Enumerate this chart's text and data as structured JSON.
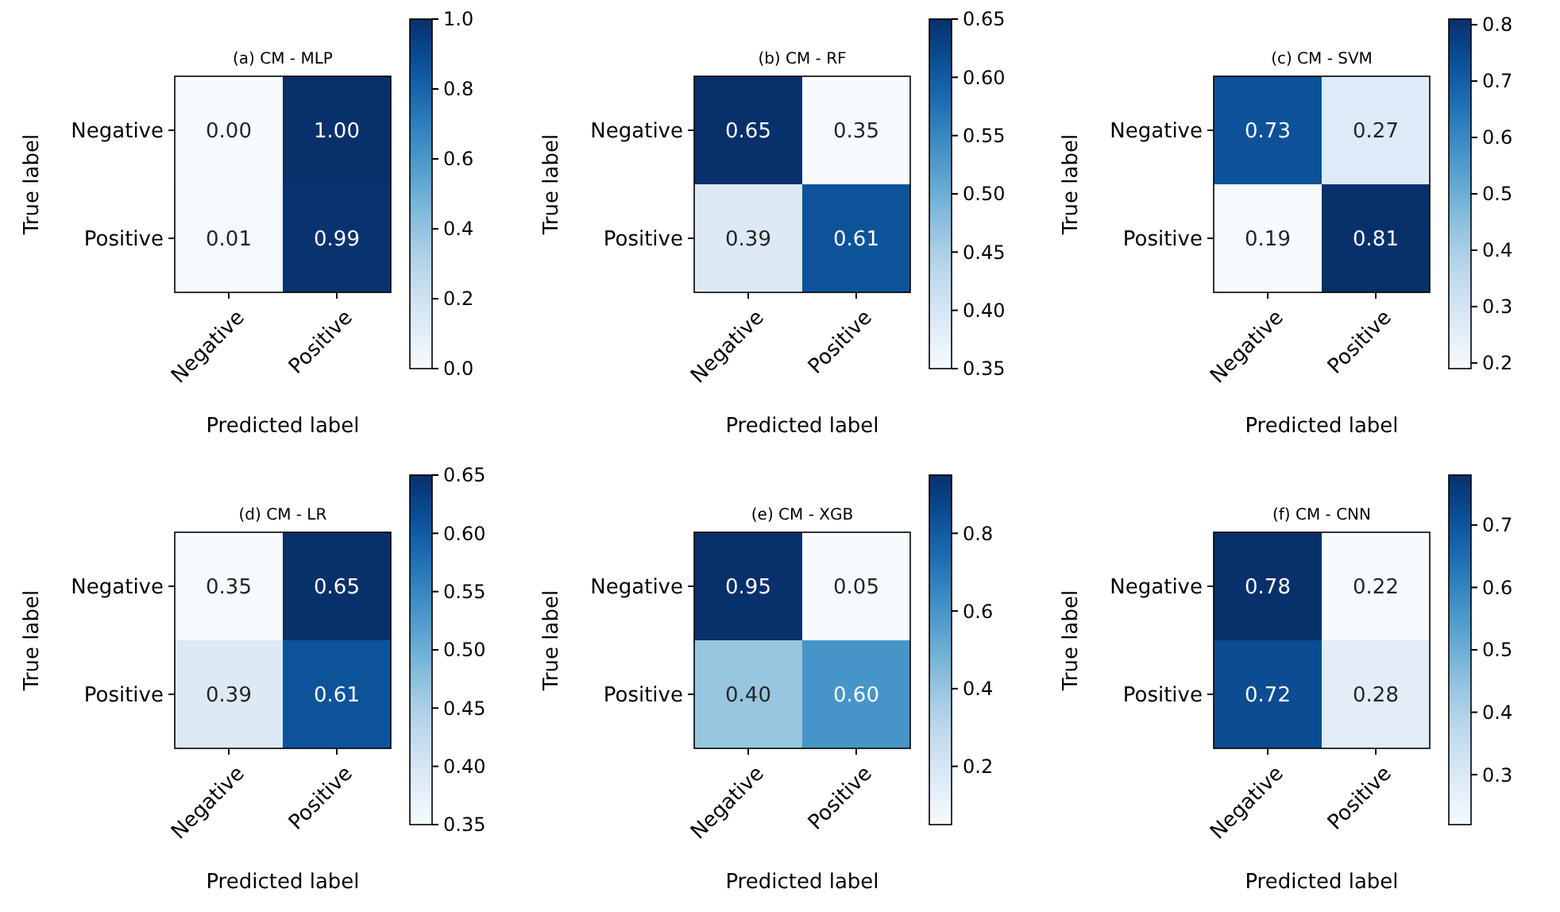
{
  "chart_data": [
    {
      "type": "heatmap",
      "title": "(a) CM - MLP",
      "xlabel": "Predicted label",
      "ylabel": "True label",
      "categories": [
        "Negative",
        "Positive"
      ],
      "y_categories": [
        "Negative",
        "Positive"
      ],
      "cells": [
        [
          0.0,
          1.0
        ],
        [
          0.01,
          0.99
        ]
      ],
      "cell_labels": [
        [
          "0.00",
          "1.00"
        ],
        [
          "0.01",
          "0.99"
        ]
      ],
      "clim": [
        0,
        1
      ],
      "cticks": [
        {
          "value": 0,
          "label": "0.0"
        },
        0.2,
        0.4,
        0.6,
        0.8,
        {
          "value": 1,
          "label": "1.0"
        }
      ]
    },
    {
      "type": "heatmap",
      "title": "(b) CM - RF",
      "xlabel": "Predicted label",
      "ylabel": "True label",
      "categories": [
        "Negative",
        "Positive"
      ],
      "y_categories": [
        "Negative",
        "Positive"
      ],
      "cells": [
        [
          0.65,
          0.35
        ],
        [
          0.39,
          0.61
        ]
      ],
      "cell_labels": [
        [
          "0.65",
          "0.35"
        ],
        [
          "0.39",
          "0.61"
        ]
      ],
      "clim": [
        0.35,
        0.65
      ],
      "cticks": [
        0.35,
        {
          "value": 0.4,
          "label": "0.40"
        },
        0.45,
        {
          "value": 0.5,
          "label": "0.50"
        },
        0.55,
        {
          "value": 0.6,
          "label": "0.60"
        },
        0.65
      ]
    },
    {
      "type": "heatmap",
      "title": "(c) CM - SVM",
      "xlabel": "Predicted label",
      "ylabel": "True label",
      "categories": [
        "Negative",
        "Positive"
      ],
      "y_categories": [
        "Negative",
        "Positive"
      ],
      "cells": [
        [
          0.73,
          0.27
        ],
        [
          0.19,
          0.81
        ]
      ],
      "cell_labels": [
        [
          "0.73",
          "0.27"
        ],
        [
          "0.19",
          "0.81"
        ]
      ],
      "clim": [
        0.19,
        0.81
      ],
      "cticks": [
        0.2,
        0.3,
        0.4,
        0.5,
        0.6,
        0.7,
        0.8
      ]
    },
    {
      "type": "heatmap",
      "title": "(d) CM - LR",
      "xlabel": "Predicted label",
      "ylabel": "True label",
      "categories": [
        "Negative",
        "Positive"
      ],
      "y_categories": [
        "Negative",
        "Positive"
      ],
      "cells": [
        [
          0.35,
          0.65
        ],
        [
          0.39,
          0.61
        ]
      ],
      "cell_labels": [
        [
          "0.35",
          "0.65"
        ],
        [
          "0.39",
          "0.61"
        ]
      ],
      "clim": [
        0.35,
        0.65
      ],
      "cticks": [
        0.35,
        {
          "value": 0.4,
          "label": "0.40"
        },
        0.45,
        {
          "value": 0.5,
          "label": "0.50"
        },
        0.55,
        {
          "value": 0.6,
          "label": "0.60"
        },
        0.65
      ]
    },
    {
      "type": "heatmap",
      "title": "(e) CM - XGB",
      "xlabel": "Predicted label",
      "ylabel": "True label",
      "categories": [
        "Negative",
        "Positive"
      ],
      "y_categories": [
        "Negative",
        "Positive"
      ],
      "cells": [
        [
          0.95,
          0.05
        ],
        [
          0.4,
          0.6
        ]
      ],
      "cell_labels": [
        [
          "0.95",
          "0.05"
        ],
        [
          "0.40",
          "0.60"
        ]
      ],
      "clim": [
        0.05,
        0.95
      ],
      "cticks": [
        0.2,
        0.4,
        0.6,
        0.8
      ]
    },
    {
      "type": "heatmap",
      "title": "(f) CM - CNN",
      "xlabel": "Predicted label",
      "ylabel": "True label",
      "categories": [
        "Negative",
        "Positive"
      ],
      "y_categories": [
        "Negative",
        "Positive"
      ],
      "cells": [
        [
          0.78,
          0.22
        ],
        [
          0.72,
          0.28
        ]
      ],
      "cell_labels": [
        [
          "0.78",
          "0.22"
        ],
        [
          "0.72",
          "0.28"
        ]
      ],
      "clim": [
        0.22,
        0.78
      ],
      "cticks": [
        0.3,
        0.4,
        0.5,
        0.6,
        0.7
      ]
    }
  ]
}
